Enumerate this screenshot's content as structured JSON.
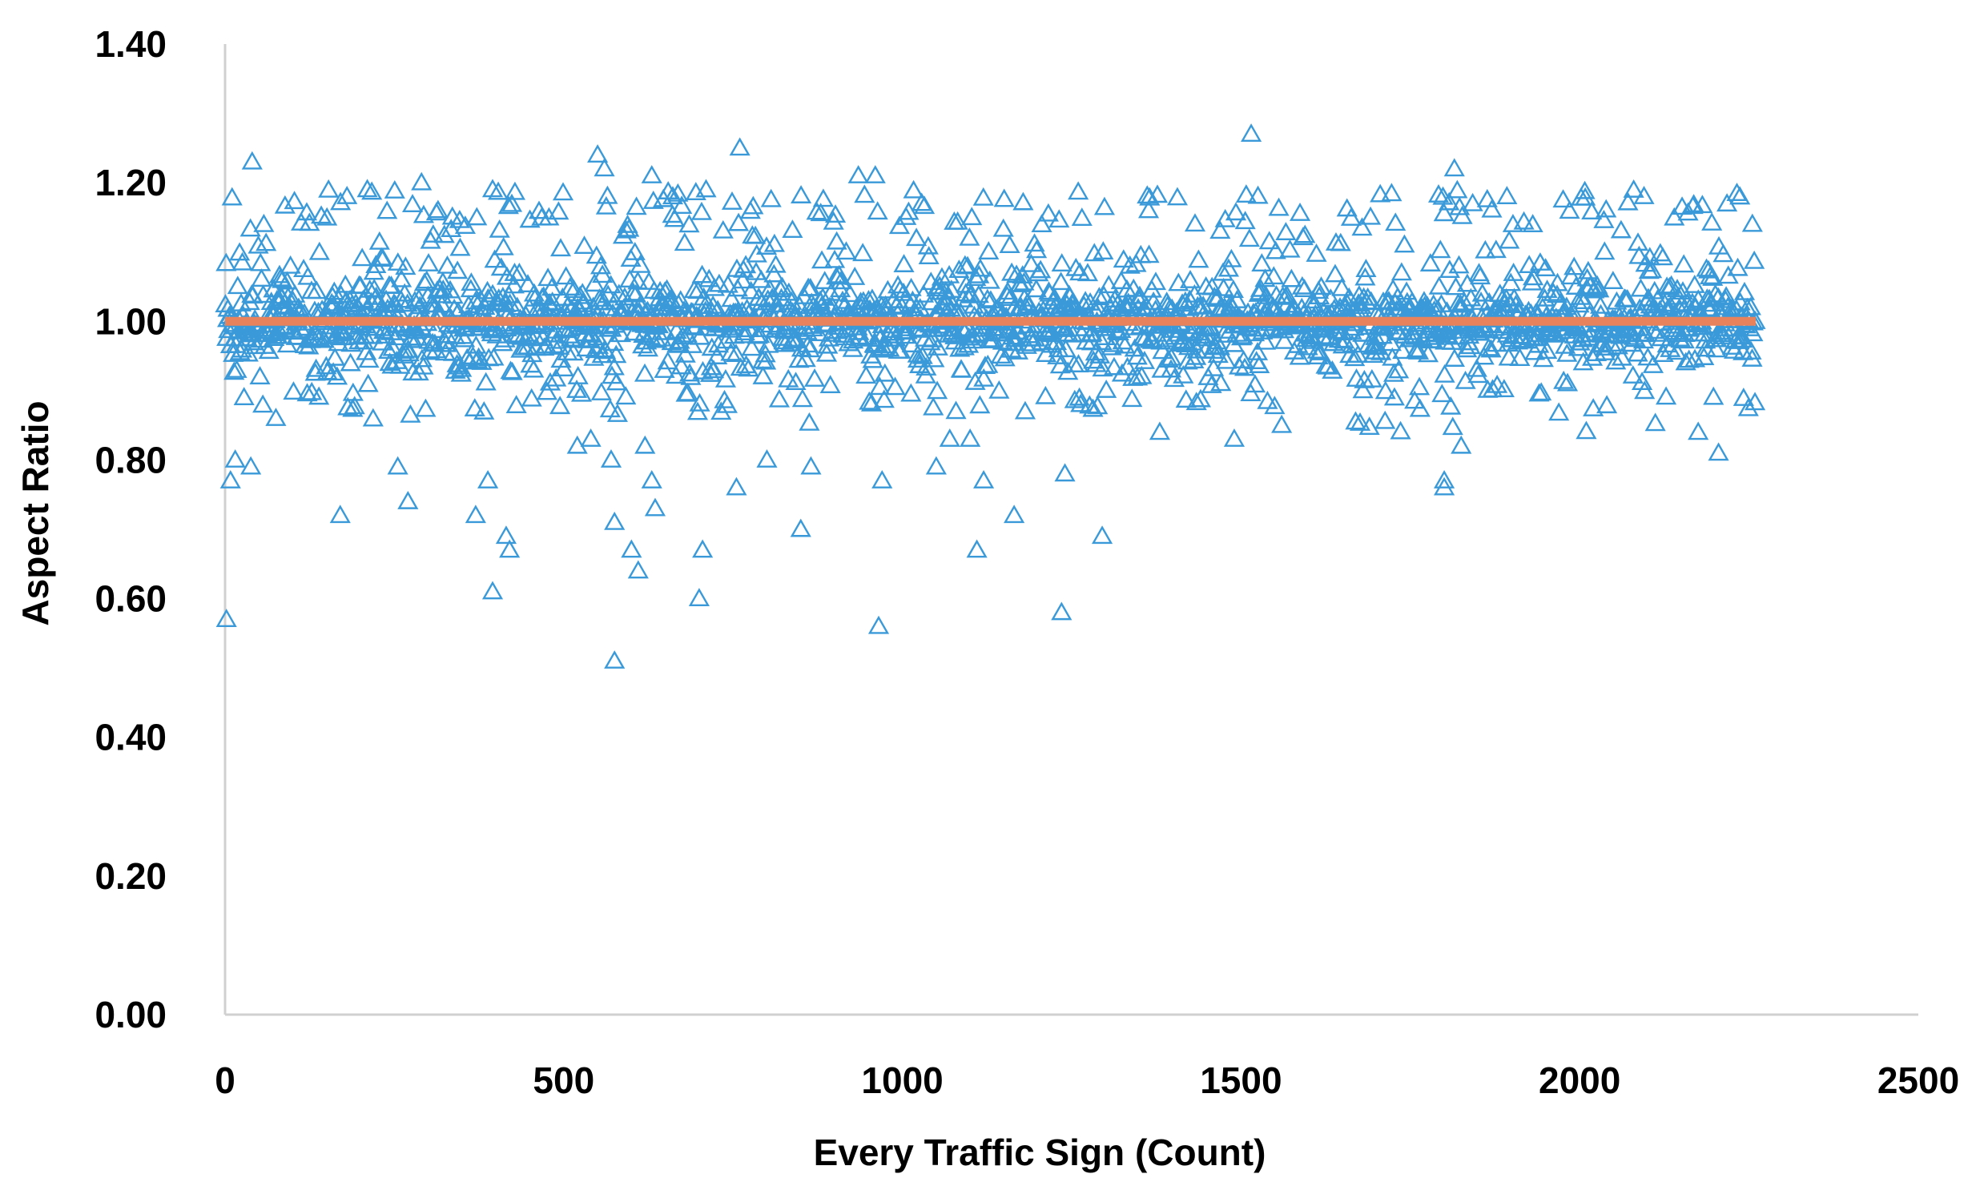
{
  "chart_data": {
    "type": "scatter",
    "title": "",
    "xlabel": "Every Traffic Sign (Count)",
    "ylabel": "Aspect Ratio",
    "xlim": [
      0,
      2500
    ],
    "ylim": [
      0,
      1.4
    ],
    "x_ticks": [
      "0",
      "500",
      "1000",
      "1500",
      "2000",
      "2500"
    ],
    "y_ticks": [
      "0.00",
      "0.20",
      "0.40",
      "0.60",
      "0.80",
      "1.00",
      "1.20",
      "1.40"
    ],
    "grid": false,
    "legend": "none",
    "series": [
      {
        "marker": "triangle-open",
        "color": "#3a9ad9",
        "summary": "approximately 2260 traffic signs, aspect ratios mostly between 0.85 and 1.20, densest near 1.00",
        "points": [
          [
            2,
            0.57
          ],
          [
            8,
            0.77
          ],
          [
            15,
            0.8
          ],
          [
            28,
            0.89
          ],
          [
            38,
            0.79
          ],
          [
            40,
            1.23
          ],
          [
            75,
            0.86
          ],
          [
            170,
            0.72
          ],
          [
            255,
            0.79
          ],
          [
            270,
            0.74
          ],
          [
            370,
            0.72
          ],
          [
            388,
            0.77
          ],
          [
            395,
            0.61
          ],
          [
            415,
            0.69
          ],
          [
            420,
            0.67
          ],
          [
            575,
            0.51
          ],
          [
            575,
            0.71
          ],
          [
            570,
            0.8
          ],
          [
            600,
            0.67
          ],
          [
            610,
            0.64
          ],
          [
            620,
            0.82
          ],
          [
            630,
            0.77
          ],
          [
            635,
            0.73
          ],
          [
            700,
            0.6
          ],
          [
            705,
            0.67
          ],
          [
            755,
            0.76
          ],
          [
            760,
            1.25
          ],
          [
            800,
            0.8
          ],
          [
            850,
            0.7
          ],
          [
            865,
            0.79
          ],
          [
            965,
            0.56
          ],
          [
            970,
            0.77
          ],
          [
            1050,
            0.79
          ],
          [
            1070,
            0.83
          ],
          [
            1100,
            0.83
          ],
          [
            1110,
            0.67
          ],
          [
            1120,
            0.77
          ],
          [
            1165,
            0.72
          ],
          [
            1235,
            0.58
          ],
          [
            1240,
            0.78
          ],
          [
            1295,
            0.69
          ],
          [
            1515,
            1.27
          ],
          [
            1800,
            0.77
          ],
          [
            1800,
            0.76
          ],
          [
            1815,
            1.22
          ],
          [
            1825,
            0.82
          ],
          [
            2095,
            1.18
          ],
          [
            2175,
            0.84
          ],
          [
            2205,
            0.81
          ],
          [
            2255,
            1.14
          ],
          [
            550,
            1.24
          ],
          [
            560,
            1.22
          ],
          [
            630,
            1.21
          ],
          [
            935,
            1.21
          ],
          [
            960,
            1.21
          ],
          [
            290,
            1.2
          ],
          [
            395,
            1.19
          ],
          [
            210,
            1.19
          ],
          [
            180,
            1.18
          ],
          [
            520,
            0.82
          ],
          [
            540,
            0.83
          ],
          [
            1490,
            0.83
          ],
          [
            1560,
            0.85
          ],
          [
            1380,
            0.84
          ],
          [
            1680,
            0.9
          ]
        ]
      },
      {
        "name": "",
        "marker": "line",
        "color": "#e8825c",
        "points": [
          [
            0,
            1.0
          ],
          [
            2260,
            1.0
          ]
        ]
      }
    ]
  }
}
